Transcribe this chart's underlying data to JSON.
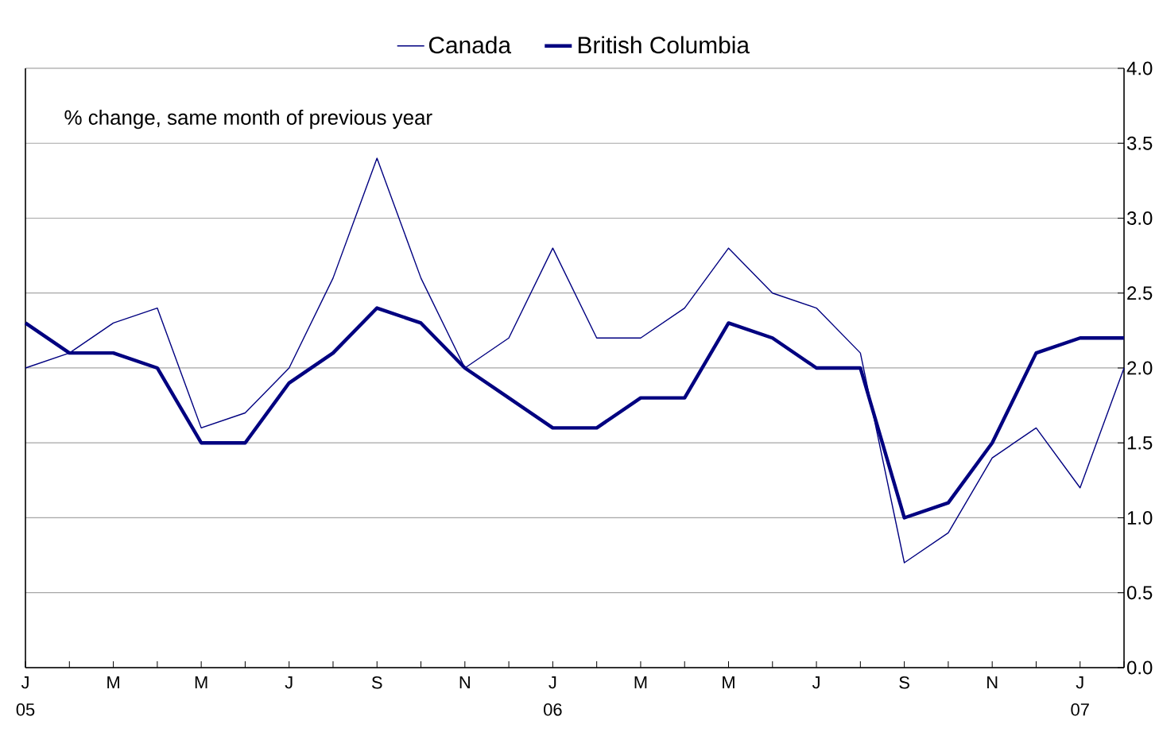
{
  "chart_data": {
    "type": "line",
    "subtitle": "% change, same month of previous year",
    "categories": [
      "J",
      null,
      "M",
      null,
      "M",
      null,
      "J",
      null,
      "S",
      null,
      "N",
      null,
      "J",
      null,
      "M",
      null,
      "M",
      null,
      "J",
      null,
      "S",
      null,
      "N",
      null,
      "J",
      null
    ],
    "series": [
      {
        "name": "Canada",
        "color": "#000080",
        "values": [
          2.0,
          2.1,
          2.3,
          2.4,
          1.6,
          1.7,
          2.0,
          2.6,
          3.4,
          2.6,
          2.0,
          2.2,
          2.8,
          2.2,
          2.2,
          2.4,
          2.8,
          2.5,
          2.4,
          2.1,
          0.7,
          0.9,
          1.4,
          1.6,
          1.2,
          2.0
        ]
      },
      {
        "name": "British Columbia",
        "color": "#000080",
        "values": [
          2.3,
          2.1,
          2.1,
          2.0,
          1.5,
          1.5,
          1.9,
          2.1,
          2.4,
          2.3,
          2.0,
          1.8,
          1.6,
          1.6,
          1.8,
          1.8,
          2.3,
          2.2,
          2.0,
          2.0,
          1.0,
          1.1,
          1.5,
          2.1,
          2.2,
          2.2
        ]
      }
    ],
    "annotations": [
      "05",
      "06",
      "07"
    ],
    "ylim": [
      0,
      4
    ],
    "yticks": [
      {
        "value": 0,
        "label": "0.0"
      },
      {
        "value": 0.5,
        "label": "0.5"
      },
      {
        "value": 1,
        "label": "1.0"
      },
      {
        "value": 1.5,
        "label": "1.5"
      },
      {
        "value": 2,
        "label": "2.0"
      },
      {
        "value": 2.5,
        "label": "2.5"
      },
      {
        "value": 3,
        "label": "3.0"
      },
      {
        "value": 3.5,
        "label": "3.5"
      },
      {
        "value": 4,
        "label": "4.0"
      }
    ],
    "grid": "y",
    "legend": "top",
    "marker": "none",
    "line_style": "solid"
  }
}
